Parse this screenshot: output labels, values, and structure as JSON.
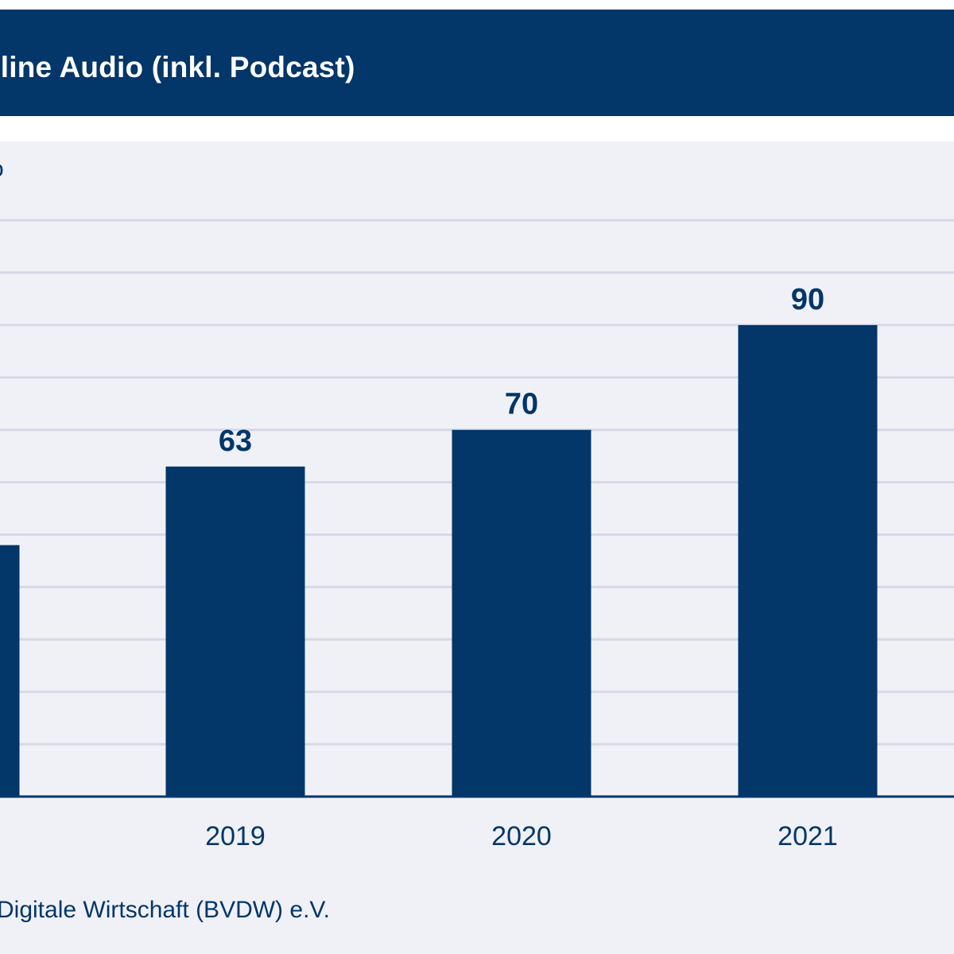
{
  "header": {
    "title": "nline Audio (inkl. Podcast)"
  },
  "unit_label": "o",
  "source": "Digitale Wirtschaft (BVDW) e.V.",
  "colors": {
    "bar": "#033669",
    "header_bg": "#033669",
    "panel_bg": "#f0f1f7",
    "grid": "#d6d8e6",
    "text": "#033669"
  },
  "chart_data": {
    "type": "bar",
    "categories": [
      "",
      "2019",
      "2020",
      "2021"
    ],
    "values": [
      48,
      63,
      70,
      90
    ],
    "value_labels": [
      "",
      "63",
      "70",
      "90"
    ],
    "ylim": [
      0,
      110
    ],
    "grid": true,
    "grid_step": 10,
    "xlabel": "",
    "ylabel": ""
  }
}
